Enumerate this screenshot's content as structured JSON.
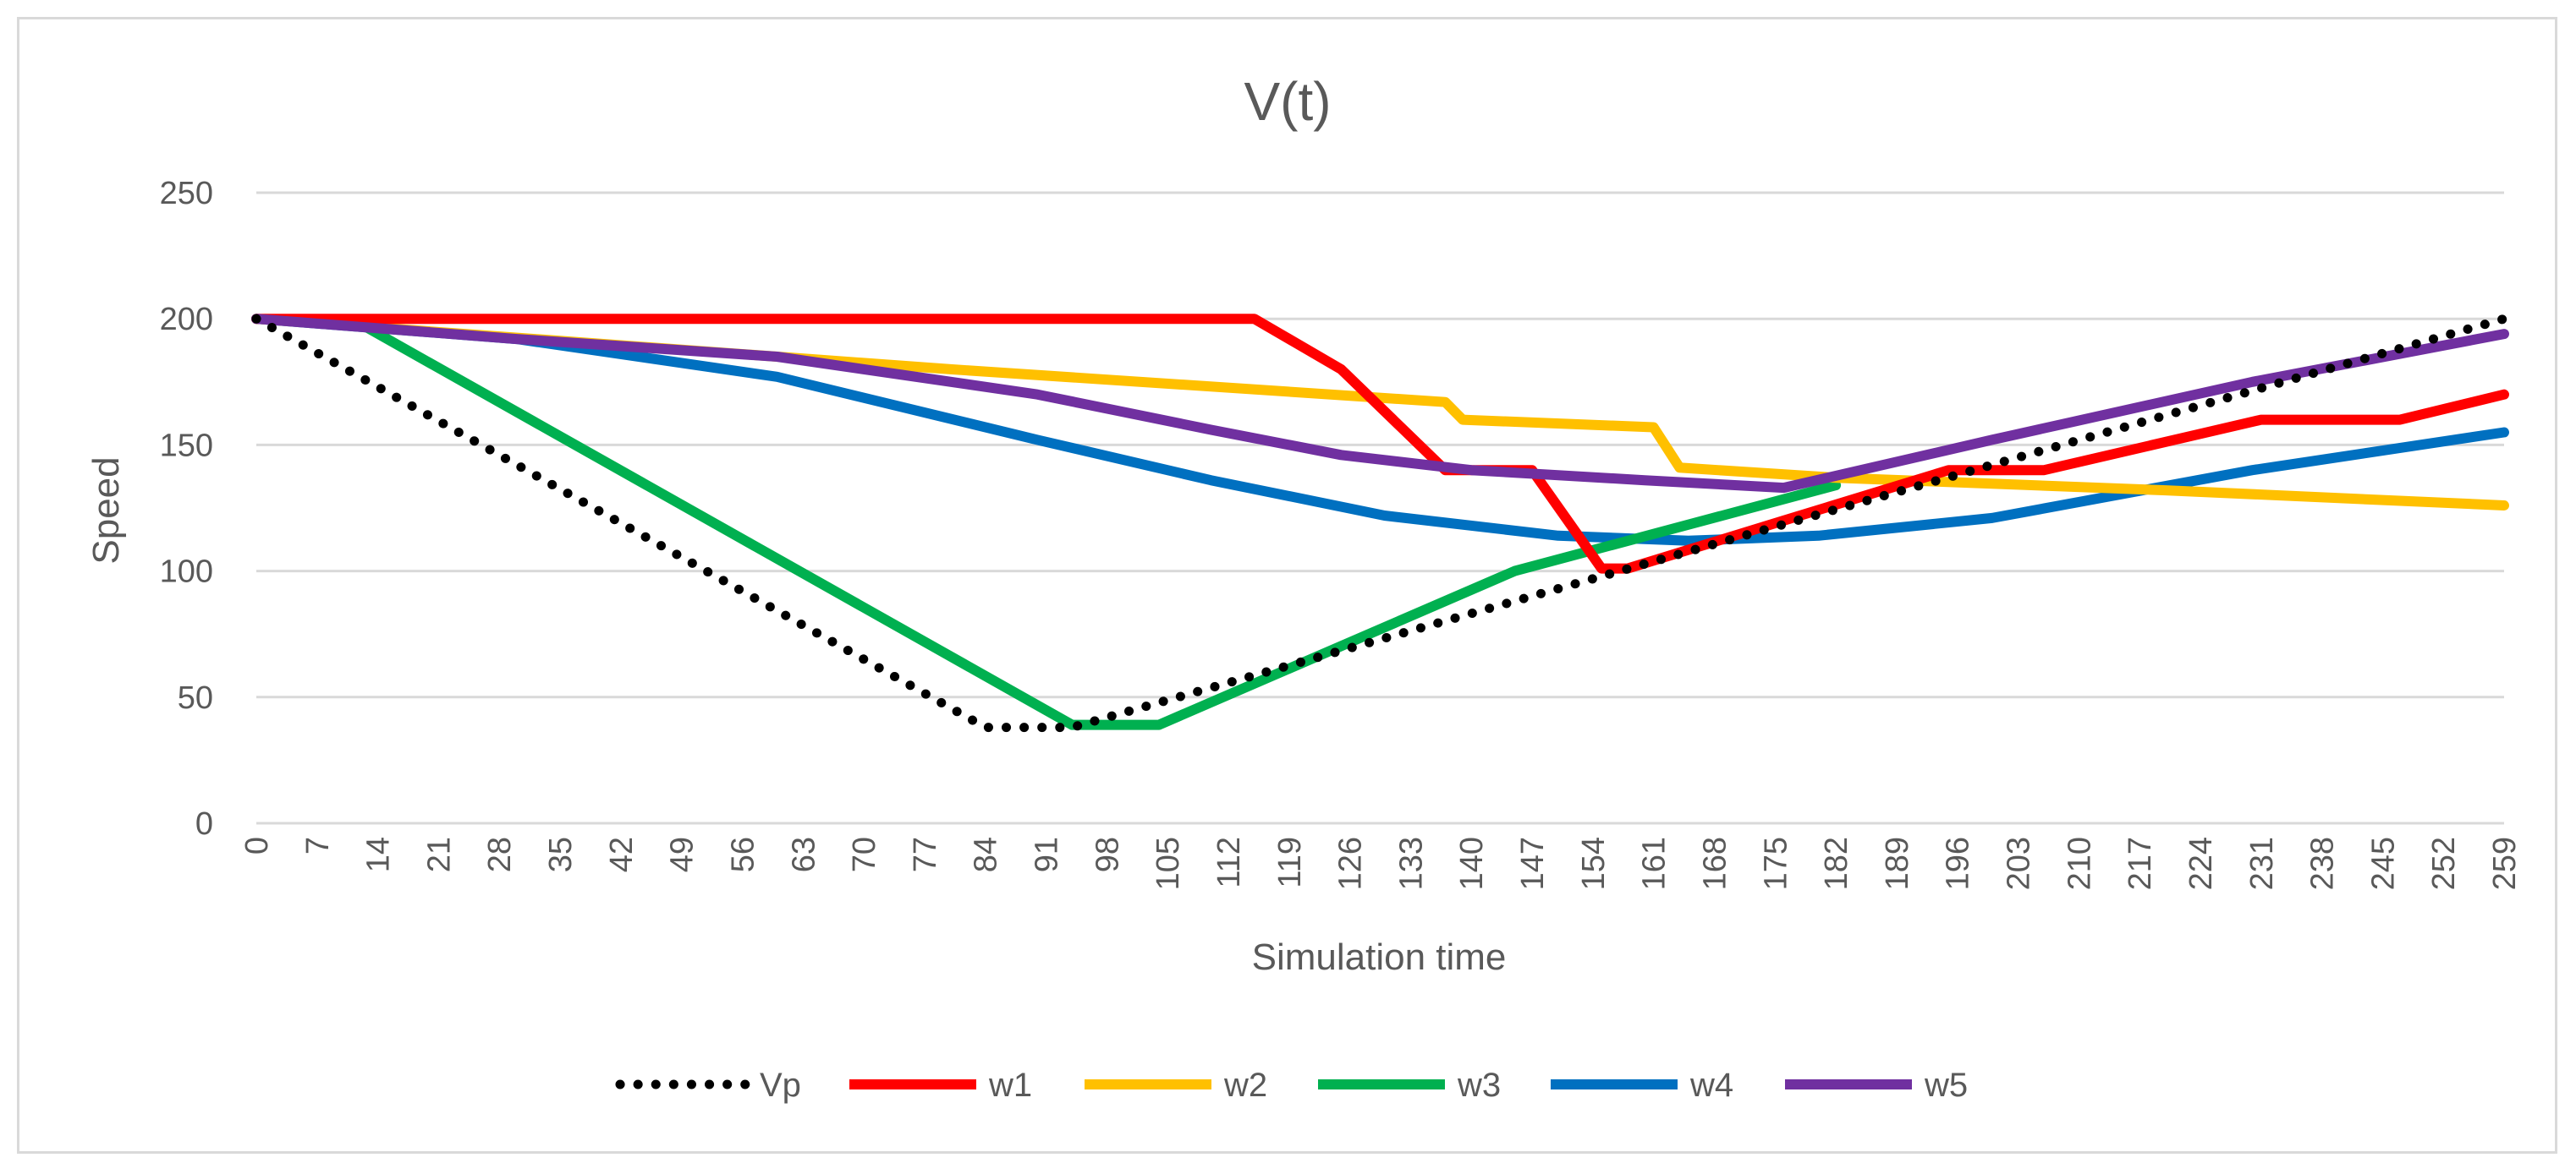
{
  "chart_data": {
    "type": "line",
    "title": "V(t)",
    "xlabel": "Simulation time",
    "ylabel": "Speed",
    "ylim": [
      0,
      250
    ],
    "yticks": [
      0,
      50,
      100,
      150,
      200,
      250
    ],
    "xlim": [
      0,
      259
    ],
    "xtick_labels": [
      "0",
      "7",
      "14",
      "21",
      "28",
      "35",
      "42",
      "49",
      "56",
      "63",
      "70",
      "77",
      "84",
      "91",
      "98",
      "105",
      "112",
      "119",
      "126",
      "133",
      "140",
      "147",
      "154",
      "161",
      "168",
      "175",
      "182",
      "189",
      "196",
      "203",
      "210",
      "217",
      "224",
      "231",
      "238",
      "245",
      "252",
      "259"
    ],
    "legend_position": "bottom",
    "series": [
      {
        "name": "Vp",
        "color": "#000000",
        "style": "dotted",
        "x": [
          0,
          84,
          94,
          259
        ],
        "y": [
          200,
          38,
          38,
          200
        ]
      },
      {
        "name": "w1",
        "color": "#ff0000",
        "style": "solid",
        "x": [
          0,
          115,
          125,
          137,
          147,
          155,
          158,
          176,
          195,
          206,
          231,
          247,
          259
        ],
        "y": [
          200,
          200,
          180,
          140,
          140,
          101,
          101,
          120,
          140,
          140,
          160,
          160,
          170
        ]
      },
      {
        "name": "w2",
        "color": "#ffc000",
        "style": "solid",
        "x": [
          0,
          40,
          80,
          137,
          139,
          161,
          164,
          182,
          220,
          259
        ],
        "y": [
          200,
          190,
          180,
          167,
          160,
          157,
          141,
          137,
          132,
          126
        ]
      },
      {
        "name": "w3",
        "color": "#00b050",
        "style": "solid",
        "x": [
          0,
          12,
          94,
          104,
          145,
          182
        ],
        "y": [
          200,
          198,
          39,
          39,
          100,
          134
        ]
      },
      {
        "name": "w4",
        "color": "#0070c0",
        "style": "solid",
        "x": [
          0,
          30,
          60,
          90,
          110,
          130,
          150,
          165,
          180,
          200,
          230,
          259
        ],
        "y": [
          200,
          192,
          177,
          152,
          136,
          122,
          114,
          112,
          114,
          121,
          140,
          155
        ]
      },
      {
        "name": "w5",
        "color": "#7030a0",
        "style": "solid",
        "x": [
          0,
          30,
          60,
          90,
          110,
          125,
          140,
          160,
          176,
          200,
          230,
          259
        ],
        "y": [
          200,
          192,
          185,
          170,
          156,
          146,
          140,
          136,
          133,
          152,
          175,
          194
        ]
      }
    ]
  }
}
